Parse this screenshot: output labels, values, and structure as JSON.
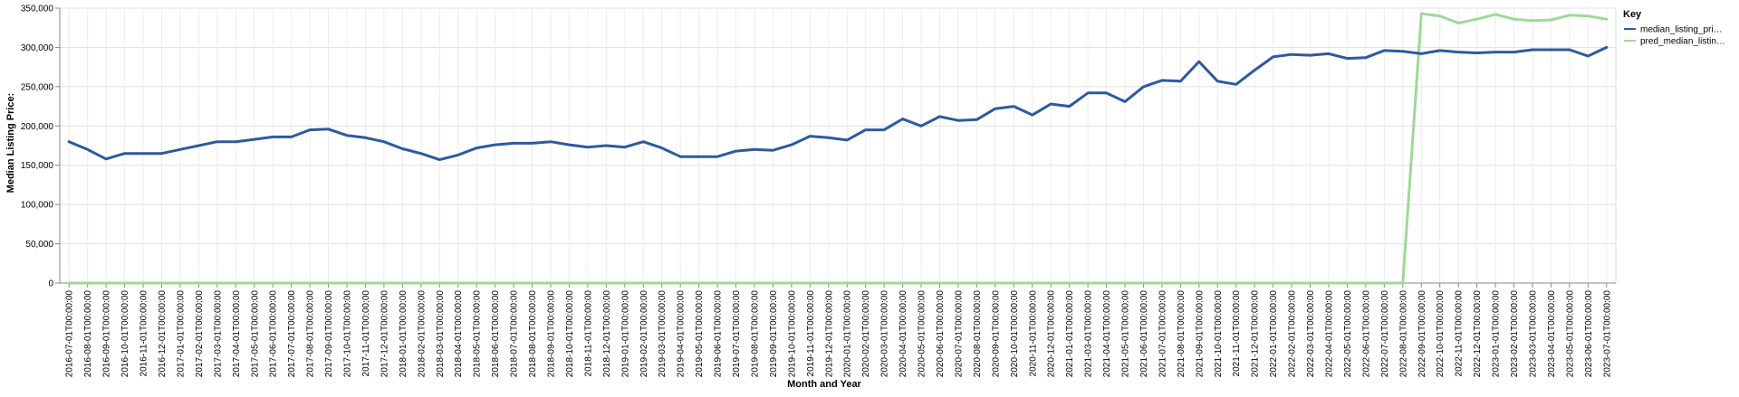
{
  "chart_data": {
    "type": "line",
    "title": "",
    "xlabel": "Month and Year",
    "ylabel": "Median Listing Price:",
    "ylim": [
      0,
      350000
    ],
    "yticks": [
      "0",
      "50,000",
      "100,000",
      "150,000",
      "200,000",
      "250,000",
      "300,000",
      "350,000"
    ],
    "grid": true,
    "legend": {
      "title": "Key",
      "position": "right",
      "entries": [
        "median_listing_pri…",
        "pred_median_listin…"
      ]
    },
    "categories": [
      "2016-07-01T00:00:00",
      "2016-08-01T00:00:00",
      "2016-09-01T00:00:00",
      "2016-10-01T00:00:00",
      "2016-11-01T00:00:00",
      "2016-12-01T00:00:00",
      "2017-01-01T00:00:00",
      "2017-02-01T00:00:00",
      "2017-03-01T00:00:00",
      "2017-04-01T00:00:00",
      "2017-05-01T00:00:00",
      "2017-06-01T00:00:00",
      "2017-07-01T00:00:00",
      "2017-08-01T00:00:00",
      "2017-09-01T00:00:00",
      "2017-10-01T00:00:00",
      "2017-11-01T00:00:00",
      "2017-12-01T00:00:00",
      "2018-01-01T00:00:00",
      "2018-02-01T00:00:00",
      "2018-03-01T00:00:00",
      "2018-04-01T00:00:00",
      "2018-05-01T00:00:00",
      "2018-06-01T00:00:00",
      "2018-07-01T00:00:00",
      "2018-08-01T00:00:00",
      "2018-09-01T00:00:00",
      "2018-10-01T00:00:00",
      "2018-11-01T00:00:00",
      "2018-12-01T00:00:00",
      "2019-01-01T00:00:00",
      "2019-02-01T00:00:00",
      "2019-03-01T00:00:00",
      "2019-04-01T00:00:00",
      "2019-05-01T00:00:00",
      "2019-06-01T00:00:00",
      "2019-07-01T00:00:00",
      "2019-08-01T00:00:00",
      "2019-09-01T00:00:00",
      "2019-10-01T00:00:00",
      "2019-11-01T00:00:00",
      "2019-12-01T00:00:00",
      "2020-01-01T00:00:00",
      "2020-02-01T00:00:00",
      "2020-03-01T00:00:00",
      "2020-04-01T00:00:00",
      "2020-05-01T00:00:00",
      "2020-06-01T00:00:00",
      "2020-07-01T00:00:00",
      "2020-08-01T00:00:00",
      "2020-09-01T00:00:00",
      "2020-10-01T00:00:00",
      "2020-11-01T00:00:00",
      "2020-12-01T00:00:00",
      "2021-01-01T00:00:00",
      "2021-03-01T00:00:00",
      "2021-04-01T00:00:00",
      "2021-05-01T00:00:00",
      "2021-06-01T00:00:00",
      "2021-07-01T00:00:00",
      "2021-08-01T00:00:00",
      "2021-09-01T00:00:00",
      "2021-10-01T00:00:00",
      "2021-11-01T00:00:00",
      "2021-12-01T00:00:00",
      "2022-01-01T00:00:00",
      "2022-02-01T00:00:00",
      "2022-03-01T00:00:00",
      "2022-04-01T00:00:00",
      "2022-05-01T00:00:00",
      "2022-06-01T00:00:00",
      "2022-07-01T00:00:00",
      "2022-08-01T00:00:00",
      "2022-09-01T00:00:00",
      "2022-10-01T00:00:00",
      "2022-11-01T00:00:00",
      "2022-12-01T00:00:00",
      "2023-01-01T00:00:00",
      "2023-02-01T00:00:00",
      "2023-03-01T00:00:00",
      "2023-04-01T00:00:00",
      "2023-05-01T00:00:00",
      "2023-06-01T00:00:00",
      "2023-07-01T00:00:00"
    ],
    "series": [
      {
        "name": "median_listing_pri…",
        "color": "#2c5aa0",
        "values": [
          180000,
          170000,
          158000,
          165000,
          165000,
          165000,
          170000,
          175000,
          180000,
          180000,
          183000,
          186000,
          186000,
          195000,
          196000,
          188000,
          185000,
          180000,
          171000,
          165000,
          157000,
          163000,
          172000,
          176000,
          178000,
          178000,
          180000,
          176000,
          173000,
          175000,
          173000,
          180000,
          172000,
          161000,
          161000,
          161000,
          168000,
          170000,
          169000,
          176000,
          187000,
          185000,
          182000,
          195000,
          195000,
          209000,
          200000,
          212000,
          207000,
          208000,
          222000,
          225000,
          214000,
          228000,
          225000,
          242000,
          242000,
          231000,
          250000,
          258000,
          257000,
          282000,
          257000,
          253000,
          271000,
          288000,
          291000,
          290000,
          292000,
          286000,
          287000,
          296000,
          295000,
          292000,
          296000,
          294000,
          293000,
          294000,
          294000,
          297000,
          297000,
          297000,
          289000,
          300000
        ]
      },
      {
        "name": "pred_median_listin…",
        "color": "#9fd89a",
        "values": [
          0,
          0,
          0,
          0,
          0,
          0,
          0,
          0,
          0,
          0,
          0,
          0,
          0,
          0,
          0,
          0,
          0,
          0,
          0,
          0,
          0,
          0,
          0,
          0,
          0,
          0,
          0,
          0,
          0,
          0,
          0,
          0,
          0,
          0,
          0,
          0,
          0,
          0,
          0,
          0,
          0,
          0,
          0,
          0,
          0,
          0,
          0,
          0,
          0,
          0,
          0,
          0,
          0,
          0,
          0,
          0,
          0,
          0,
          0,
          0,
          0,
          0,
          0,
          0,
          0,
          0,
          0,
          0,
          0,
          0,
          0,
          0,
          0,
          343000,
          340000,
          331000,
          336000,
          342000,
          336000,
          334000,
          335000,
          341000,
          340000,
          336000
        ]
      }
    ]
  }
}
